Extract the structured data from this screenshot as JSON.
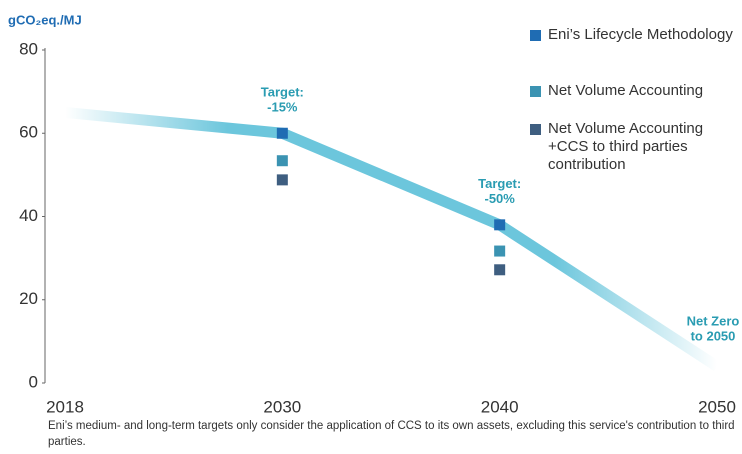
{
  "chart_data": {
    "type": "line",
    "y_label": "gCO₂eq./MJ",
    "categories": [
      "2018",
      "2030",
      "2040",
      "2050"
    ],
    "ylim": [
      0,
      80
    ],
    "yticks": [
      0,
      20,
      40,
      60,
      80
    ],
    "trend": {
      "color": "#6cc6dc",
      "values": [
        65,
        60,
        38,
        4
      ]
    },
    "series": [
      {
        "name": "Eni’s Lifecycle Methodology",
        "color": "#1f6cb3",
        "values": [
          null,
          60,
          38,
          null
        ]
      },
      {
        "name": "Net Volume Accounting",
        "color": "#3b93b2",
        "values": [
          null,
          53.4,
          31.7,
          null
        ]
      },
      {
        "name": "Net Volume Accounting +CCS to third parties contribution",
        "color": "#3e5e80",
        "values": [
          null,
          48.8,
          27.2,
          null
        ]
      }
    ],
    "annotations": [
      {
        "category": 1,
        "lines": [
          "Target:",
          "-15%"
        ]
      },
      {
        "category": 2,
        "lines": [
          "Target:",
          "-50%"
        ]
      },
      {
        "category": 3,
        "lines": [
          "Net Zero",
          "to 2050"
        ]
      }
    ],
    "footnote": "Eni’s medium- and long-term targets only consider the application of CCS to its own assets, excluding this service's contribution to third parties."
  }
}
